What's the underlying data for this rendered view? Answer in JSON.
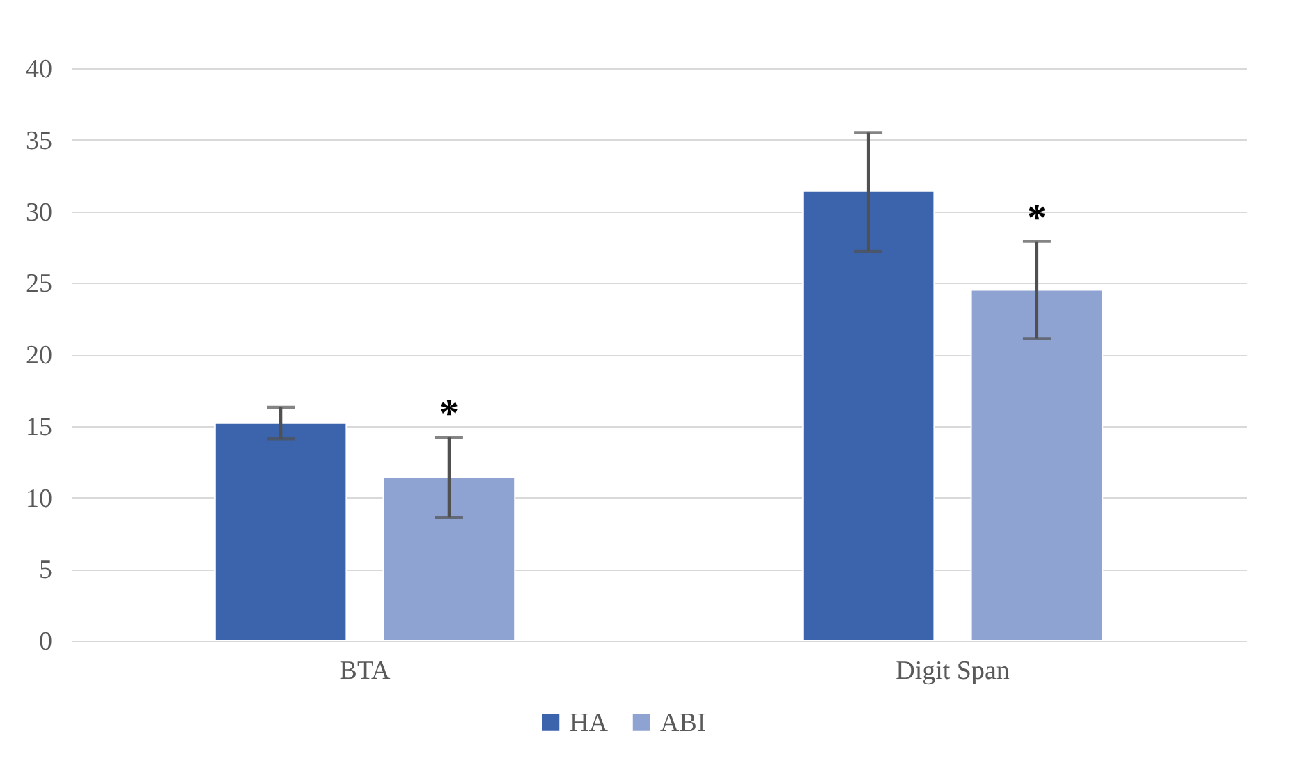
{
  "chart_data": {
    "type": "bar",
    "categories": [
      "BTA",
      "Digit Span"
    ],
    "series": [
      {
        "name": "HA",
        "color": "#3c64ac",
        "values": [
          15.2,
          31.4
        ],
        "errors": [
          [
            14.1,
            16.3
          ],
          [
            27.2,
            35.5
          ]
        ]
      },
      {
        "name": "ABI",
        "color": "#8fa3d3",
        "values": [
          11.4,
          24.5
        ],
        "errors": [
          [
            8.6,
            14.2
          ],
          [
            21.1,
            27.9
          ]
        ]
      }
    ],
    "ylim": [
      0,
      40
    ],
    "yticks": [
      0,
      5,
      10,
      15,
      20,
      25,
      30,
      35,
      40
    ],
    "grid": "y",
    "legend": "bottom",
    "annotations": [
      "*",
      "*"
    ]
  }
}
